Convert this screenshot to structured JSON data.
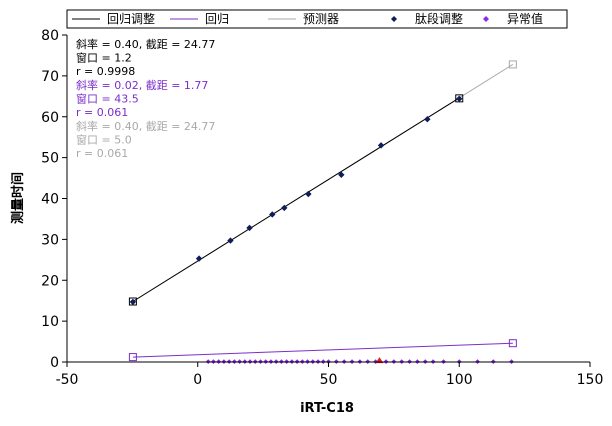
{
  "chart_data": {
    "type": "scatter",
    "xlabel": "iRT-C18",
    "ylabel": "测量时间",
    "xlim": [
      -50,
      150
    ],
    "ylim": [
      0,
      80
    ],
    "x_ticks": [
      "-50",
      "0",
      "50",
      "100",
      "150"
    ],
    "x_tick_values": [
      -50,
      0,
      50,
      100,
      150
    ],
    "y_ticks": [
      "0",
      "10",
      "20",
      "30",
      "40",
      "50",
      "60",
      "70",
      "80"
    ],
    "y_tick_values": [
      0,
      10,
      20,
      30,
      40,
      50,
      60,
      70,
      80
    ],
    "grid": false,
    "legend_position": "top",
    "legend": [
      {
        "label": "回归调整",
        "kind": "line",
        "color": "#000000"
      },
      {
        "label": "回归",
        "kind": "line",
        "color": "#7b2fc9"
      },
      {
        "label": "预测器",
        "kind": "line",
        "color": "#a9a9a9"
      },
      {
        "label": "肽段调整",
        "kind": "diamond",
        "color": "#0d1e5a"
      },
      {
        "label": "异常值",
        "kind": "diamond",
        "color": "#8a2be2"
      }
    ],
    "annotations": [
      {
        "lines": [
          "斜率 = 0.40, 截距 = 24.77",
          "窗口 = 1.2",
          "r = 0.9998"
        ],
        "color": "#000000"
      },
      {
        "lines": [
          "斜率 = 0.02, 截距 = 1.77",
          "窗口 = 43.5",
          "r = 0.061"
        ],
        "color": "#7b2fc9"
      },
      {
        "lines": [
          "斜率 = 0.40, 截距 = 24.77",
          "窗口 = 5.0",
          "r = 0.061"
        ],
        "color": "#a9a9a9"
      }
    ],
    "series": [
      {
        "name": "回归调整",
        "kind": "line",
        "color": "#000000",
        "x": [
          -24.8,
          100
        ],
        "y": [
          14.8,
          64.6
        ]
      },
      {
        "name": "回归",
        "kind": "line",
        "color": "#7b2fc9",
        "x": [
          -24.8,
          120.5
        ],
        "y": [
          1.2,
          4.6
        ]
      },
      {
        "name": "预测器",
        "kind": "line",
        "color": "#a9a9a9",
        "x": [
          -24.8,
          120.5
        ],
        "y": [
          14.8,
          72.8
        ]
      },
      {
        "name": "肽段调整",
        "kind": "diamond",
        "color": "#0d1e5a",
        "x": [
          -24.8,
          0.5,
          12.5,
          19.8,
          28.5,
          33.1,
          42.3,
          54.9,
          70.1,
          87.8,
          100
        ],
        "y": [
          14.7,
          25.3,
          29.7,
          32.8,
          36.1,
          37.7,
          41.1,
          45.8,
          53.0,
          59.4,
          64.4
        ]
      },
      {
        "name": "异常值",
        "kind": "diamond",
        "color": "#8a2be2",
        "x": [
          4,
          6,
          8,
          10,
          12,
          14,
          16,
          18,
          20,
          22,
          24,
          26,
          28,
          30,
          32,
          34,
          36,
          38,
          40,
          42,
          44,
          46,
          48,
          50,
          53,
          56,
          59,
          62,
          65,
          68,
          72,
          75,
          78,
          81,
          84,
          87,
          90,
          94,
          100,
          107,
          113,
          120
        ],
        "y": [
          0.1,
          0.1,
          0.1,
          0.1,
          0.1,
          0.1,
          0.1,
          0.1,
          0.1,
          0.1,
          0.1,
          0.1,
          0.1,
          0.1,
          0.1,
          0.1,
          0.1,
          0.1,
          0.1,
          0.1,
          0.1,
          0.1,
          0.1,
          0.1,
          0.1,
          0.1,
          0.1,
          0.1,
          0.1,
          0.1,
          0.1,
          0.1,
          0.1,
          0.1,
          0.1,
          0.1,
          0.1,
          0.1,
          0.1,
          0.1,
          0.1,
          0.1
        ]
      },
      {
        "name": "highlighted-point",
        "kind": "triangle",
        "color": "#e02020",
        "x": [
          69.5
        ],
        "y": [
          0.2
        ]
      }
    ],
    "open_square_markers": [
      {
        "x": -24.8,
        "y": 14.8,
        "color": "#000000"
      },
      {
        "x": 100,
        "y": 64.5,
        "color": "#000000"
      },
      {
        "x": -24.8,
        "y": 1.2,
        "color": "#7b2fc9"
      },
      {
        "x": 120.5,
        "y": 4.6,
        "color": "#7b2fc9"
      },
      {
        "x": 120.5,
        "y": 72.8,
        "color": "#a9a9a9"
      }
    ]
  }
}
